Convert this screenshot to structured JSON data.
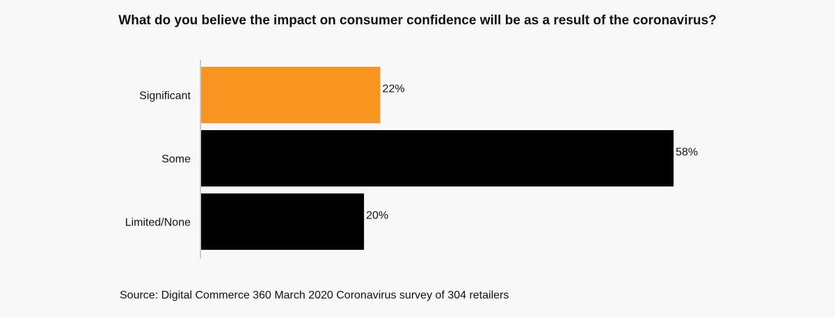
{
  "chart_data": {
    "type": "bar",
    "orientation": "horizontal",
    "title": "What do you believe the impact on consumer confidence will be as a result of the coronavirus?",
    "categories": [
      "Significant",
      "Some",
      "Limited/None"
    ],
    "values": [
      22,
      58,
      20
    ],
    "value_labels": [
      "22%",
      "58%",
      "20%"
    ],
    "colors": [
      "#f79520",
      "#000000",
      "#000000"
    ],
    "xlim": [
      0,
      58
    ],
    "grid": false,
    "source": "Source: Digital Commerce 360  March 2020 Coronavirus survey  of 304 retailers"
  }
}
